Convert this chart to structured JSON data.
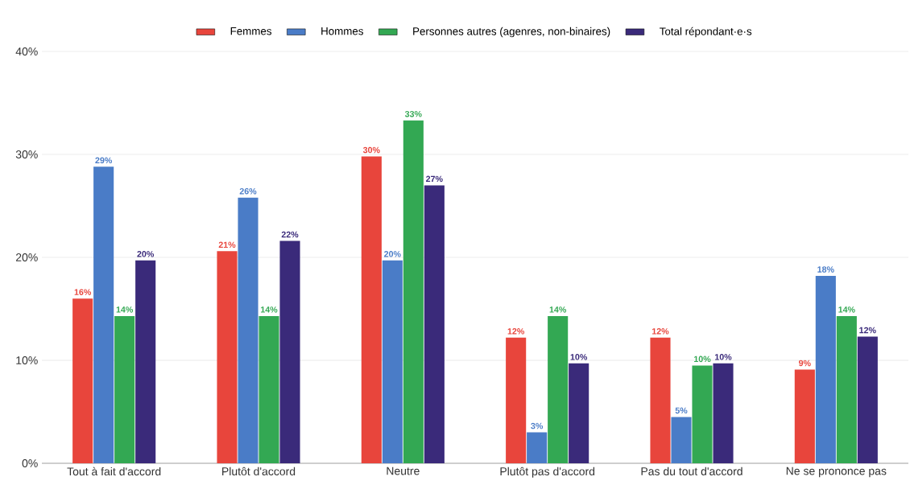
{
  "chart_data": {
    "type": "bar",
    "categories": [
      "Tout à fait d'accord",
      "Plutôt d'accord",
      "Neutre",
      "Plutôt pas d'accord",
      "Pas du tout d'accord",
      "Ne se prononce pas"
    ],
    "series": [
      {
        "name": "Femmes",
        "color": "#e8453c",
        "values": [
          16.0,
          20.6,
          29.8,
          12.2,
          12.2,
          9.1
        ],
        "value_labels": [
          "16%",
          "21%",
          "30%",
          "12%",
          "12%",
          "9%"
        ]
      },
      {
        "name": "Hommes",
        "color": "#4a7cc7",
        "values": [
          28.8,
          25.8,
          19.7,
          3.0,
          4.5,
          18.2
        ],
        "value_labels": [
          "29%",
          "26%",
          "20%",
          "3%",
          "5%",
          "18%"
        ]
      },
      {
        "name": "Personnes autres (agenres, non-binaires)",
        "color": "#33a853",
        "values": [
          14.3,
          14.3,
          33.3,
          14.3,
          9.5,
          14.3
        ],
        "value_labels": [
          "14%",
          "14%",
          "33%",
          "14%",
          "10%",
          "14%"
        ]
      },
      {
        "name": "Total répondant·e·s",
        "color": "#3a2a7a",
        "values": [
          19.7,
          21.6,
          27.0,
          9.7,
          9.7,
          12.3
        ],
        "value_labels": [
          "20%",
          "22%",
          "27%",
          "10%",
          "10%",
          "12%"
        ]
      }
    ],
    "ylim": [
      0,
      40
    ],
    "yticks": [
      {
        "value": 0,
        "label": "0%"
      },
      {
        "value": 10,
        "label": "10%"
      },
      {
        "value": 20,
        "label": "20%"
      },
      {
        "value": 30,
        "label": "30%"
      },
      {
        "value": 40,
        "label": "40%"
      }
    ],
    "grid": "y",
    "legend": "top"
  }
}
